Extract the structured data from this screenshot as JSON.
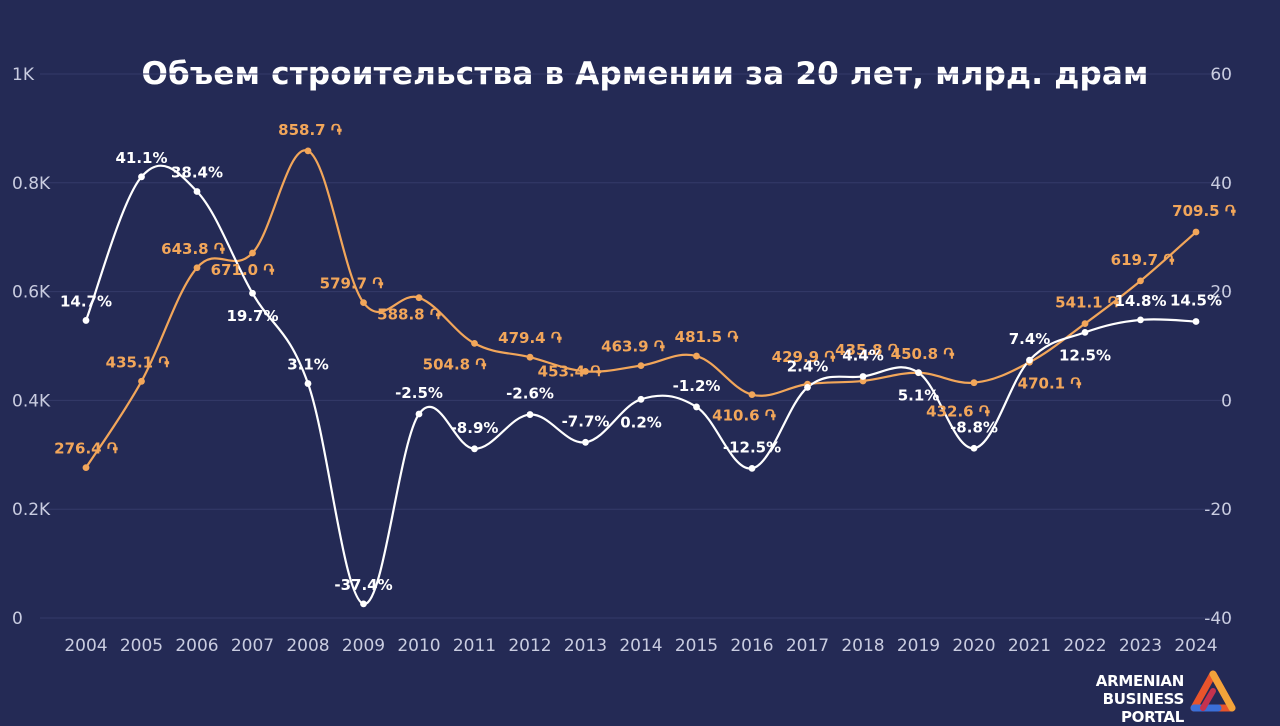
{
  "chart_data": {
    "type": "line",
    "title": "Объем строительства в Армении за 20 лет, млрд. драм",
    "x": [
      "2004",
      "2005",
      "2006",
      "2007",
      "2008",
      "2009",
      "2010",
      "2011",
      "2012",
      "2013",
      "2014",
      "2015",
      "2016",
      "2017",
      "2018",
      "2019",
      "2020",
      "2021",
      "2022",
      "2023",
      "2024"
    ],
    "left_axis": {
      "ylim": [
        0,
        1000
      ],
      "ticks": [
        0,
        200,
        400,
        600,
        800,
        1000
      ],
      "tick_labels": [
        "0",
        "0.2K",
        "0.4K",
        "0.6K",
        "0.8K",
        "1K"
      ]
    },
    "right_axis": {
      "ylim": [
        -40,
        60
      ],
      "ticks": [
        -40,
        -20,
        0,
        20,
        40,
        60
      ],
      "tick_labels": [
        "-40",
        "-20",
        "0",
        "20",
        "40",
        "60"
      ]
    },
    "grid": true,
    "series": [
      {
        "axis": "left",
        "color": "#F2A65A",
        "values": [
          276.4,
          435.1,
          643.8,
          671.0,
          858.7,
          579.7,
          588.8,
          504.8,
          479.4,
          453.4,
          463.9,
          481.5,
          410.6,
          429.9,
          435.8,
          450.8,
          432.6,
          470.1,
          541.1,
          619.7,
          709.5
        ],
        "labels": [
          "276.4 ֏",
          "435.1 ֏",
          "643.8 ֏",
          "671.0 ֏",
          "858.7 ֏",
          "579.7 ֏",
          "588.8 ֏",
          "504.8 ֏",
          "479.4 ֏",
          "453.4 ֏",
          "463.9 ֏",
          "481.5 ֏",
          "410.6 ֏",
          "429.9 ֏",
          "435.8 ֏",
          "450.8 ֏",
          "432.6 ֏",
          "470.1 ֏",
          "541.1 ֏",
          "619.7 ֏",
          "709.5 ֏"
        ]
      },
      {
        "axis": "right",
        "color": "#FFFFFF",
        "values": [
          14.7,
          41.1,
          38.4,
          19.7,
          3.1,
          -37.4,
          -2.5,
          -8.9,
          -2.6,
          -7.7,
          0.2,
          -1.2,
          -12.5,
          2.4,
          4.4,
          5.1,
          -8.8,
          7.4,
          12.5,
          14.8,
          14.5
        ],
        "labels": [
          "14.7%",
          "41.1%",
          "38.4%",
          "19.7%",
          "3.1%",
          "-37.4%",
          "-2.5%",
          "-8.9%",
          "-2.6%",
          "-7.7%",
          "0.2%",
          "-1.2%",
          "-12.5%",
          "2.4%",
          "4.4%",
          "5.1%",
          "-8.8%",
          "7.4%",
          "12.5%",
          "14.8%",
          "14.5%"
        ]
      }
    ]
  },
  "logo": {
    "line1": "ARMENIAN",
    "line2": "BUSINESS PORTAL"
  },
  "colors": {
    "background": "#242A55",
    "grid": "#343A69",
    "axis_text": "#C9CCE0"
  }
}
